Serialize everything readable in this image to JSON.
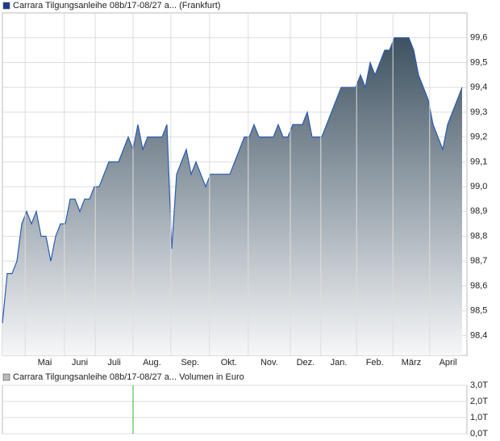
{
  "chart_data": [
    {
      "type": "area",
      "series": [
        {
          "name": "Carrara Tilgungsanleihe 08b/17-08/27 a... (Frankfurt)",
          "color": "#2a5bb0",
          "values": [
            98.45,
            98.65,
            98.65,
            98.7,
            98.85,
            98.9,
            98.85,
            98.9,
            98.8,
            98.8,
            98.7,
            98.8,
            98.85,
            98.85,
            98.95,
            98.95,
            98.9,
            98.95,
            98.95,
            99.0,
            99.0,
            99.05,
            99.1,
            99.1,
            99.1,
            99.15,
            99.2,
            99.15,
            99.25,
            99.15,
            99.2,
            99.2,
            99.2,
            99.2,
            99.25,
            98.75,
            99.05,
            99.1,
            99.15,
            99.05,
            99.1,
            99.05,
            99.0,
            99.05,
            99.05,
            99.05,
            99.05,
            99.05,
            99.1,
            99.15,
            99.2,
            99.2,
            99.25,
            99.2,
            99.2,
            99.2,
            99.2,
            99.25,
            99.2,
            99.2,
            99.25,
            99.25,
            99.25,
            99.3,
            99.2,
            99.2,
            99.2,
            99.25,
            99.3,
            99.35,
            99.4,
            99.4,
            99.4,
            99.4,
            99.45,
            99.4,
            99.5,
            99.45,
            99.5,
            99.55,
            99.55,
            99.6,
            99.6,
            99.6,
            99.6,
            99.55,
            99.45,
            99.4,
            99.35,
            99.25,
            99.2,
            99.15,
            99.25,
            99.3,
            99.35,
            99.4
          ]
        }
      ],
      "xlim": [
        0,
        96
      ],
      "xticks": [
        {
          "value": 4.7,
          "label": "Mai"
        },
        {
          "value": 12.8,
          "label": "Juni"
        },
        {
          "value": 19.2,
          "label": "Juli"
        },
        {
          "value": 27,
          "label": "Aug."
        },
        {
          "value": 34.8,
          "label": "Sep."
        },
        {
          "value": 42.8,
          "label": "Okt."
        },
        {
          "value": 50.8,
          "label": "Nov."
        },
        {
          "value": 59.5,
          "label": "Dez."
        },
        {
          "value": 65.8,
          "label": "Jan."
        },
        {
          "value": 73.2,
          "label": "Feb."
        },
        {
          "value": 80.7,
          "label": "März"
        },
        {
          "value": 88.3,
          "label": "April"
        }
      ],
      "ylim": [
        98.32,
        99.7
      ],
      "yticks": [
        {
          "value": 98.4,
          "label": "98,4"
        },
        {
          "value": 98.5,
          "label": "98,5"
        },
        {
          "value": 98.6,
          "label": "98,6"
        },
        {
          "value": 98.7,
          "label": "98,7"
        },
        {
          "value": 98.8,
          "label": "98,8"
        },
        {
          "value": 98.9,
          "label": "98,9"
        },
        {
          "value": 99.0,
          "label": "99,0"
        },
        {
          "value": 99.1,
          "label": "99,1"
        },
        {
          "value": 99.2,
          "label": "99,2"
        },
        {
          "value": 99.3,
          "label": "99,3"
        },
        {
          "value": 99.4,
          "label": "99,4"
        },
        {
          "value": 99.5,
          "label": "99,5"
        },
        {
          "value": 99.6,
          "label": "99,6"
        }
      ],
      "grid": true
    },
    {
      "type": "bar",
      "series": [
        {
          "name": "Carrara Tilgungsanleihe 08b/17-08/27 a... Volumen in Euro",
          "color": "#2eb82e",
          "values": [
            3000
          ]
        }
      ],
      "x": [
        27
      ],
      "xlim": [
        0,
        96
      ],
      "ylim": [
        0,
        3000
      ],
      "yticks": [
        {
          "value": 0,
          "label": "0,0T"
        },
        {
          "value": 1000,
          "label": "1,0T"
        },
        {
          "value": 2000,
          "label": "2,0T"
        },
        {
          "value": 3000,
          "label": "3,0T"
        }
      ],
      "grid": true
    }
  ]
}
